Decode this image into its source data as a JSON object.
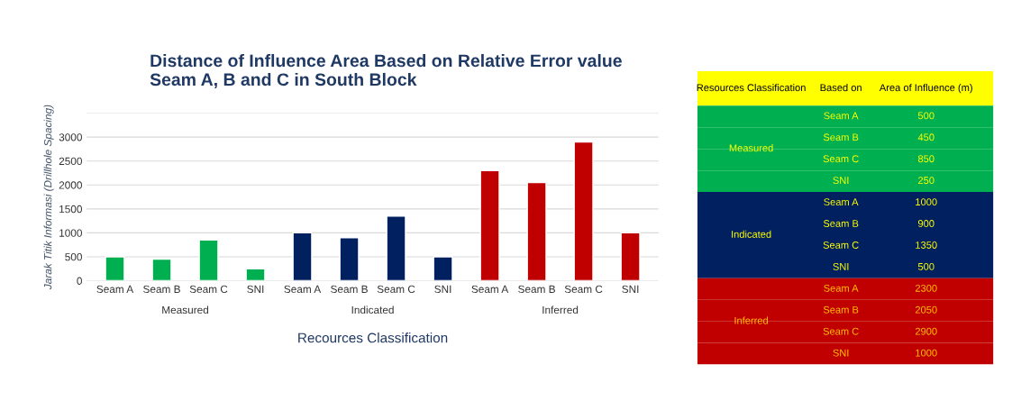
{
  "chart_data": [
    {
      "type": "bar",
      "title": "Distance of Influence Area Based on Relative Error value\nSeam A, B and C in South Block",
      "xlabel": "Recources Classification",
      "ylabel": "Jarak Titik Informasi (Drillhole Spacing)",
      "categories": [
        "Seam A",
        "Seam B",
        "Seam C",
        "SNI",
        "Seam A",
        "Seam B",
        "Seam C",
        "SNI",
        "Seam A",
        "Seam B",
        "Seam C",
        "SNI"
      ],
      "values": [
        500,
        450,
        850,
        250,
        1000,
        900,
        1350,
        500,
        2300,
        2050,
        2900,
        1000
      ],
      "colors": [
        "#00b050",
        "#00b050",
        "#00b050",
        "#00b050",
        "#002060",
        "#002060",
        "#002060",
        "#002060",
        "#c00000",
        "#c00000",
        "#c00000",
        "#c00000"
      ],
      "ylim": [
        0,
        3500
      ],
      "yticks": [
        0,
        500,
        1000,
        1500,
        2000,
        2500,
        3000,
        {
          "value": 3500,
          "label": null
        }
      ],
      "grid": "y",
      "annotations": [
        "Measured",
        "Indicated",
        "Inferred"
      ]
    },
    {
      "type": "other",
      "categories": [
        "Seam A",
        "Seam B",
        "Seam C",
        "SNI",
        "Seam A",
        "Seam B",
        "Seam C",
        "SNI",
        "Seam A",
        "Seam B",
        "Seam C",
        "SNI"
      ],
      "values": [
        500,
        450,
        850,
        250,
        1000,
        900,
        1350,
        500,
        2300,
        2050,
        2900,
        1000
      ],
      "colors": [
        "#00b050",
        "#00b050",
        "#00b050",
        "#00b050",
        "#002060",
        "#002060",
        "#002060",
        "#002060",
        "#c00000",
        "#c00000",
        "#c00000",
        "#c00000"
      ],
      "data_labels": true,
      "annotations": [
        "Resources Classification",
        "Based on",
        "Area of Influence (m)",
        "Measured",
        "Indicated",
        "Inferred"
      ]
    }
  ]
}
